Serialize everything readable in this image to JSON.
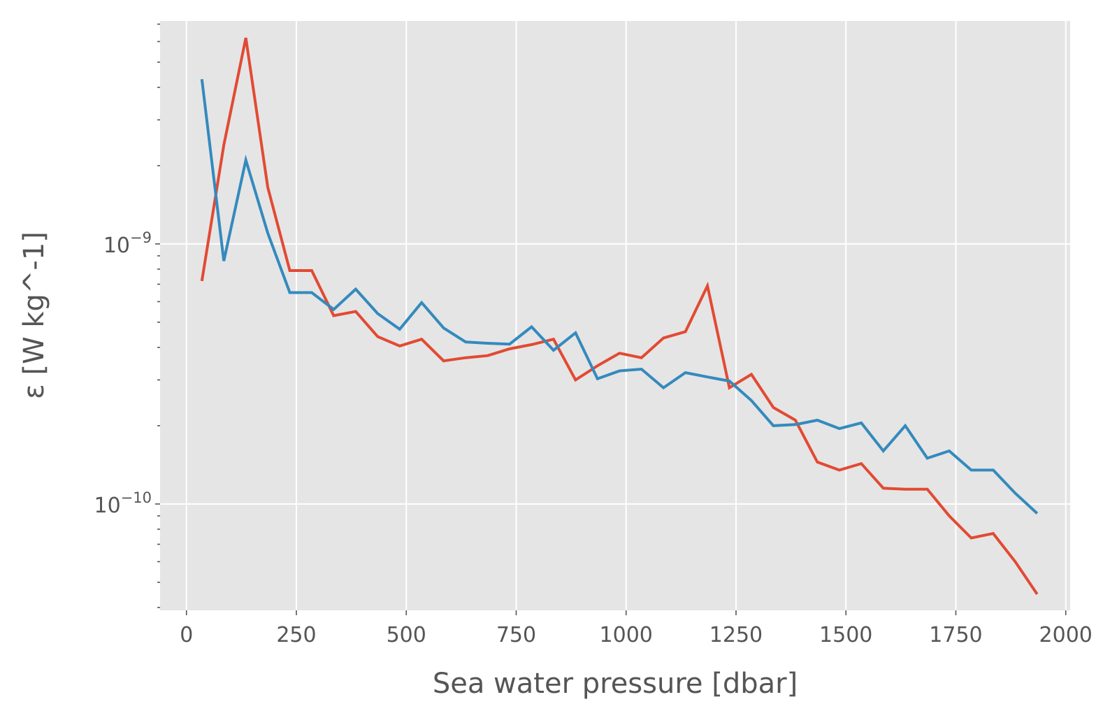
{
  "chart_data": {
    "type": "line",
    "title": "",
    "xlabel": "Sea water pressure [dbar]",
    "ylabel": "ε [W kg^-1]",
    "yscale": "log",
    "xlim": [
      -60,
      2010
    ],
    "ylim": [
      3.9e-11,
      7.2e-09
    ],
    "grid": true,
    "background_color": "#e5e5e5",
    "x_ticks": [
      {
        "value": 0,
        "label": "0"
      },
      {
        "value": 250,
        "label": "250"
      },
      {
        "value": 500,
        "label": "500"
      },
      {
        "value": 750,
        "label": "750"
      },
      {
        "value": 1000,
        "label": "1000"
      },
      {
        "value": 1250,
        "label": "1250"
      },
      {
        "value": 1500,
        "label": "1500"
      },
      {
        "value": 1750,
        "label": "1750"
      },
      {
        "value": 2000,
        "label": "2000"
      }
    ],
    "y_ticks": [
      {
        "value": 1e-10,
        "base": "10",
        "exp": "−10"
      },
      {
        "value": 1e-09,
        "base": "10",
        "exp": "−9"
      }
    ],
    "y_minor_ticks": [
      4e-11,
      5e-11,
      6e-11,
      7e-11,
      8e-11,
      9e-11,
      2e-10,
      3e-10,
      4e-10,
      5e-10,
      6e-10,
      7e-10,
      8e-10,
      9e-10,
      2e-09,
      3e-09,
      4e-09,
      5e-09,
      6e-09,
      7e-09
    ],
    "x": [
      35,
      85,
      135,
      185,
      235,
      285,
      335,
      385,
      435,
      485,
      535,
      585,
      635,
      685,
      735,
      785,
      835,
      885,
      935,
      985,
      1035,
      1085,
      1135,
      1185,
      1235,
      1285,
      1335,
      1385,
      1435,
      1485,
      1535,
      1585,
      1635,
      1685,
      1735,
      1785,
      1835,
      1885,
      1935
    ],
    "series": [
      {
        "name": "red",
        "color": "#E24A33",
        "values": [
          7.2e-10,
          2.4e-09,
          6.2e-09,
          1.65e-09,
          7.9e-10,
          7.9e-10,
          5.3e-10,
          5.5e-10,
          4.4e-10,
          4.05e-10,
          4.3e-10,
          3.55e-10,
          3.65e-10,
          3.72e-10,
          3.95e-10,
          4.1e-10,
          4.3e-10,
          3e-10,
          3.4e-10,
          3.8e-10,
          3.65e-10,
          4.35e-10,
          4.6e-10,
          6.9e-10,
          2.8e-10,
          3.15e-10,
          2.35e-10,
          2.1e-10,
          1.45e-10,
          1.35e-10,
          1.43e-10,
          1.15e-10,
          1.14e-10,
          1.14e-10,
          9e-11,
          7.4e-11,
          7.7e-11,
          6e-11,
          4.5e-11
        ]
      },
      {
        "name": "blue",
        "color": "#348ABD",
        "values": [
          4.3e-09,
          8.6e-10,
          2.1e-09,
          1.1e-09,
          6.5e-10,
          6.5e-10,
          5.6e-10,
          6.7e-10,
          5.4e-10,
          4.7e-10,
          5.95e-10,
          4.75e-10,
          4.2e-10,
          4.15e-10,
          4.12e-10,
          4.8e-10,
          3.9e-10,
          4.55e-10,
          3.03e-10,
          3.25e-10,
          3.3e-10,
          2.8e-10,
          3.2e-10,
          3.08e-10,
          2.97e-10,
          2.5e-10,
          2e-10,
          2.02e-10,
          2.1e-10,
          1.95e-10,
          2.05e-10,
          1.6e-10,
          2e-10,
          1.5e-10,
          1.6e-10,
          1.35e-10,
          1.35e-10,
          1.1e-10,
          9.2e-11
        ]
      }
    ]
  }
}
